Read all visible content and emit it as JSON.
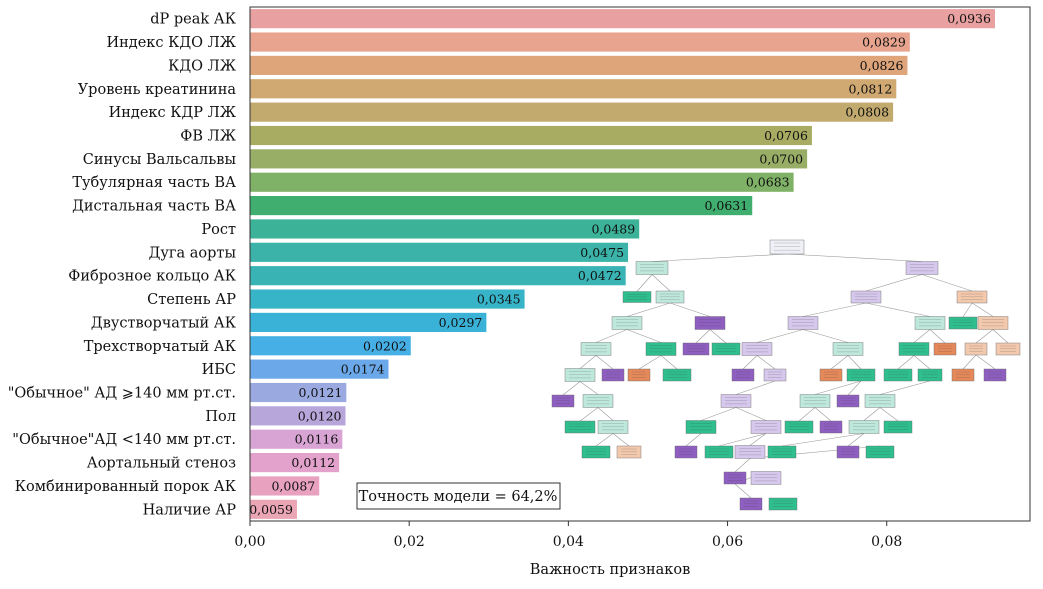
{
  "chart_data": {
    "type": "bar",
    "orientation": "horizontal",
    "categories": [
      "dP peak АК",
      "Индекс КДО ЛЖ",
      "КДО ЛЖ",
      "Уровень креатинина",
      "Индекс КДР ЛЖ",
      "ФВ ЛЖ",
      "Синусы Вальсальвы",
      "Тубулярная часть ВА",
      "Дистальная часть ВА",
      "Рост",
      "Дуга аорты",
      "Фиброзное кольцо АК",
      "Степень АР",
      "Двустворчатый АК",
      "Трехстворчатый АК",
      "ИБС",
      "\"Обычное\" АД ⩾140 мм рт.ст.",
      "Пол",
      "\"Обычное\"АД <140  мм рт.ст.",
      "Аортальный стеноз",
      "Комбинированный порок АК",
      "Наличие АР"
    ],
    "values": [
      0.0936,
      0.0829,
      0.0826,
      0.0812,
      0.0808,
      0.0706,
      0.07,
      0.0683,
      0.0631,
      0.0489,
      0.0475,
      0.0472,
      0.0345,
      0.0297,
      0.0202,
      0.0174,
      0.0121,
      0.012,
      0.0116,
      0.0112,
      0.0087,
      0.0059
    ],
    "value_labels": [
      "0,0936",
      "0,0829",
      "0,0826",
      "0,0812",
      "0,0808",
      "0,0706",
      "0,0700",
      "0,0683",
      "0,0631",
      "0,0489",
      "0,0475",
      "0,0472",
      "0,0345",
      "0,0297",
      "0,0202",
      "0,0174",
      "0,0121",
      "0,0120",
      "0,0116",
      "0,0112",
      "0,0087",
      "0,0059"
    ],
    "colors": [
      "#e8a0a0",
      "#e8a48e",
      "#dfa57a",
      "#cfa872",
      "#c2aa6e",
      "#a8ac62",
      "#98ad66",
      "#7fb266",
      "#3fae6e",
      "#3cb298",
      "#3bb3a8",
      "#3ab3b4",
      "#38b4c8",
      "#3ab2d8",
      "#46b0e6",
      "#6aa8ea",
      "#9aaae0",
      "#b6a6da",
      "#d8a4d4",
      "#e2a2cc",
      "#e8a2c0",
      "#eaa6b4"
    ],
    "xlabel": "Важность признаков",
    "ylabel": "",
    "xlim": [
      0,
      0.098
    ],
    "xticks": [
      0,
      0.02,
      0.04,
      0.06,
      0.08
    ],
    "xtick_labels": [
      "0,00",
      "0,02",
      "0,04",
      "0,06",
      "0,08"
    ],
    "grid": false,
    "annotation": "Точность модели = 64,2%",
    "inset": "decision-tree-diagram"
  }
}
